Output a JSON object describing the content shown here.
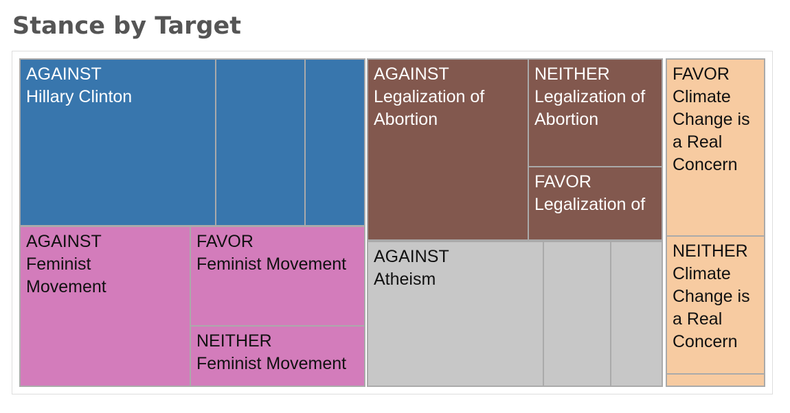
{
  "title": "Stance by Target",
  "chart_data": {
    "type": "treemap",
    "title": "Stance by Target",
    "groups": [
      {
        "target": "Hillary Clinton",
        "color": "#3876ad",
        "text_color": "#ffffff",
        "tiles": [
          {
            "line1": "AGAINST",
            "line2": "Hillary Clinton"
          },
          {
            "line1": "",
            "line2": ""
          },
          {
            "line1": "",
            "line2": ""
          }
        ]
      },
      {
        "target": "Feminist Movement",
        "color": "#d37cbb",
        "text_color": "#111111",
        "tiles": [
          {
            "line1": "AGAINST",
            "line2": "Feminist",
            "line3": "Movement"
          },
          {
            "line1": "FAVOR",
            "line2": "Feminist Movement"
          },
          {
            "line1": "NEITHER",
            "line2": "Feminist Movement"
          }
        ]
      },
      {
        "target": "Legalization of Abortion",
        "color": "#82584e",
        "text_color": "#ffffff",
        "tiles": [
          {
            "line1": "AGAINST",
            "line2": "Legalization of",
            "line3": "Abortion"
          },
          {
            "line1": "NEITHER",
            "line2": "Legalization of",
            "line3": "Abortion"
          },
          {
            "line1": "FAVOR",
            "line2": "Legalization of"
          }
        ]
      },
      {
        "target": "Atheism",
        "color": "#c7c7c7",
        "text_color": "#111111",
        "tiles": [
          {
            "line1": "AGAINST",
            "line2": "Atheism"
          },
          {
            "line1": "",
            "line2": ""
          },
          {
            "line1": "",
            "line2": ""
          }
        ]
      },
      {
        "target": "Climate Change is a Real Concern",
        "color": "#f7cba1",
        "text_color": "#111111",
        "tiles": [
          {
            "line1": "FAVOR",
            "line2": "Climate",
            "line3": "Change is",
            "line4": "a Real",
            "line5": "Concern"
          },
          {
            "line1": "NEITHER",
            "line2": "Climate",
            "line3": "Change is",
            "line4": "a Real",
            "line5": "Concern"
          },
          {
            "line1": "",
            "line2": ""
          }
        ]
      }
    ]
  }
}
